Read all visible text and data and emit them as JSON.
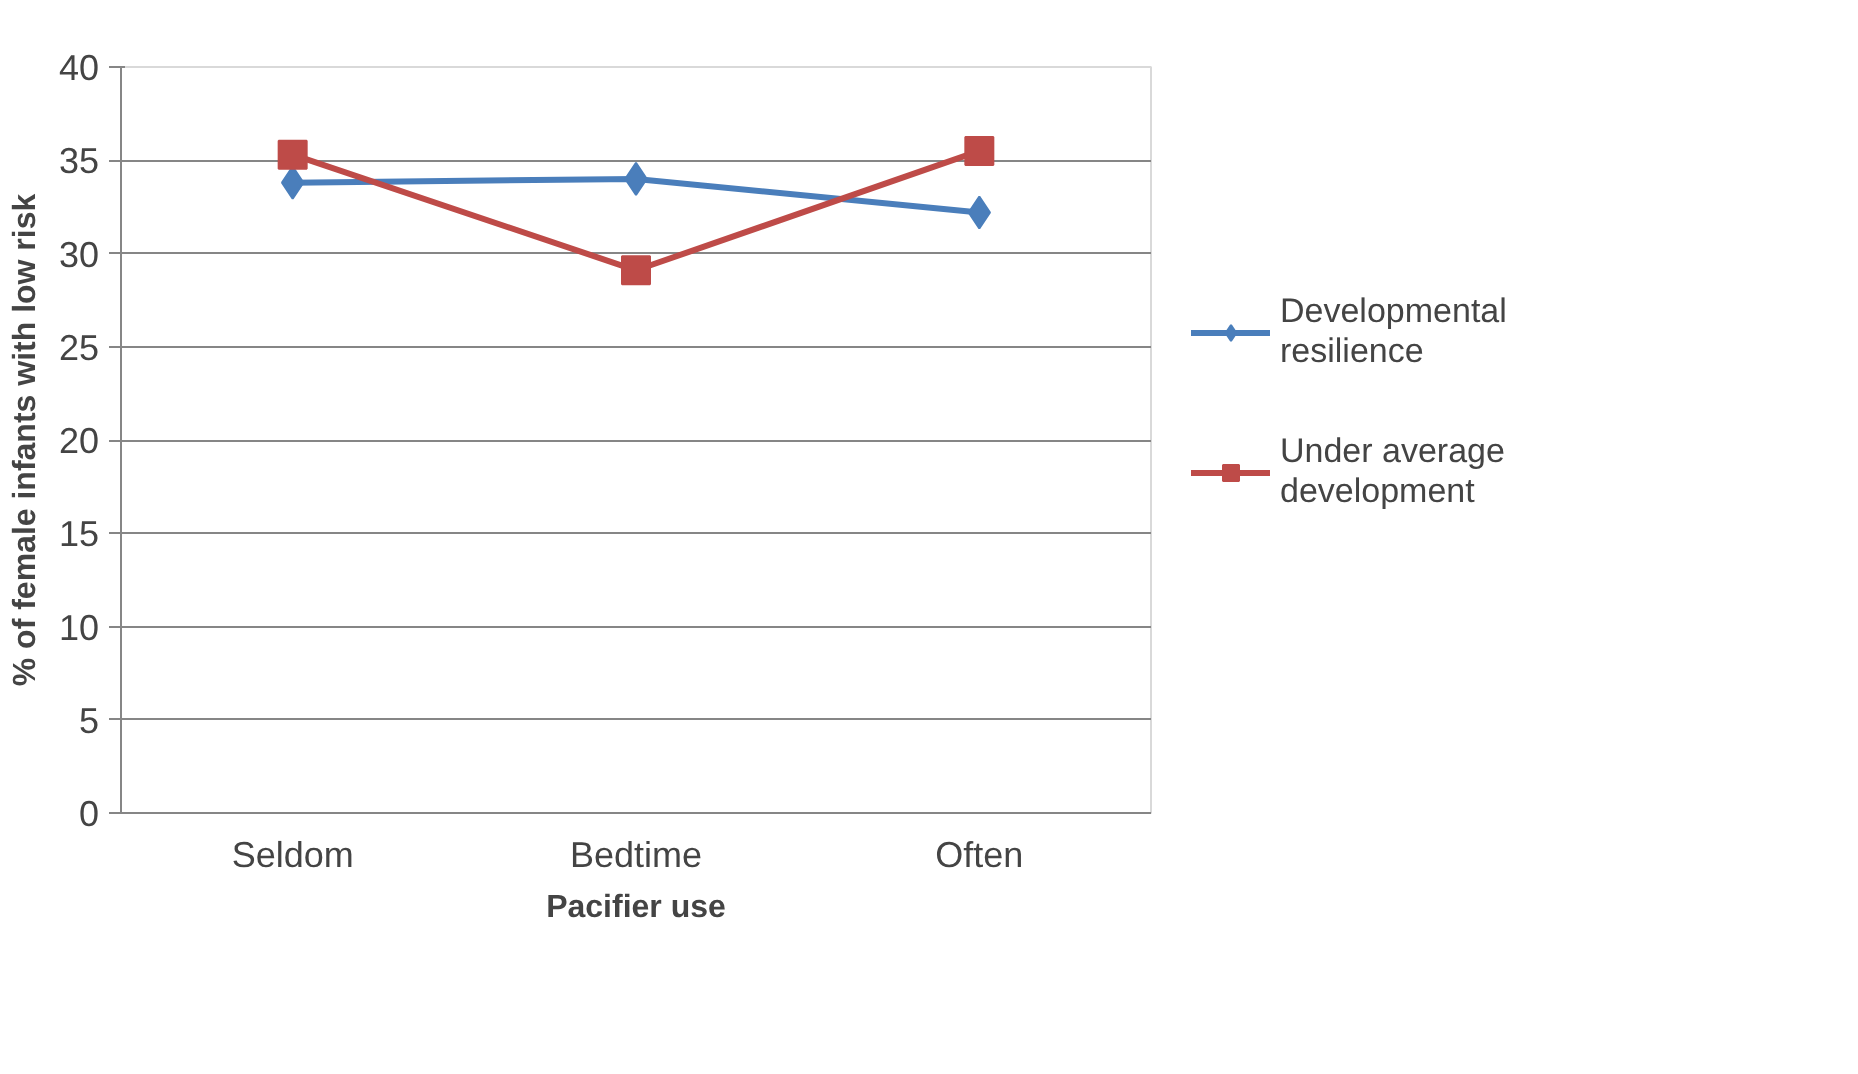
{
  "chart_data": {
    "type": "line",
    "xlabel": "Pacifier use",
    "ylabel": "% of female infants with low risk",
    "categories": [
      "Seldom",
      "Bedtime",
      "Often"
    ],
    "series": [
      {
        "name": "Developmental resilience",
        "color": "#4a7ebb",
        "marker": "diamond",
        "values": [
          33.8,
          34.0,
          32.2
        ]
      },
      {
        "name": "Under average development",
        "color": "#be4b48",
        "marker": "square",
        "values": [
          35.3,
          29.1,
          35.5
        ]
      }
    ],
    "ylim": [
      0,
      40
    ],
    "yticks": [
      0,
      5,
      10,
      15,
      20,
      25,
      30,
      35,
      40
    ],
    "grid": "y",
    "legend": "right",
    "line_style": "solid"
  }
}
